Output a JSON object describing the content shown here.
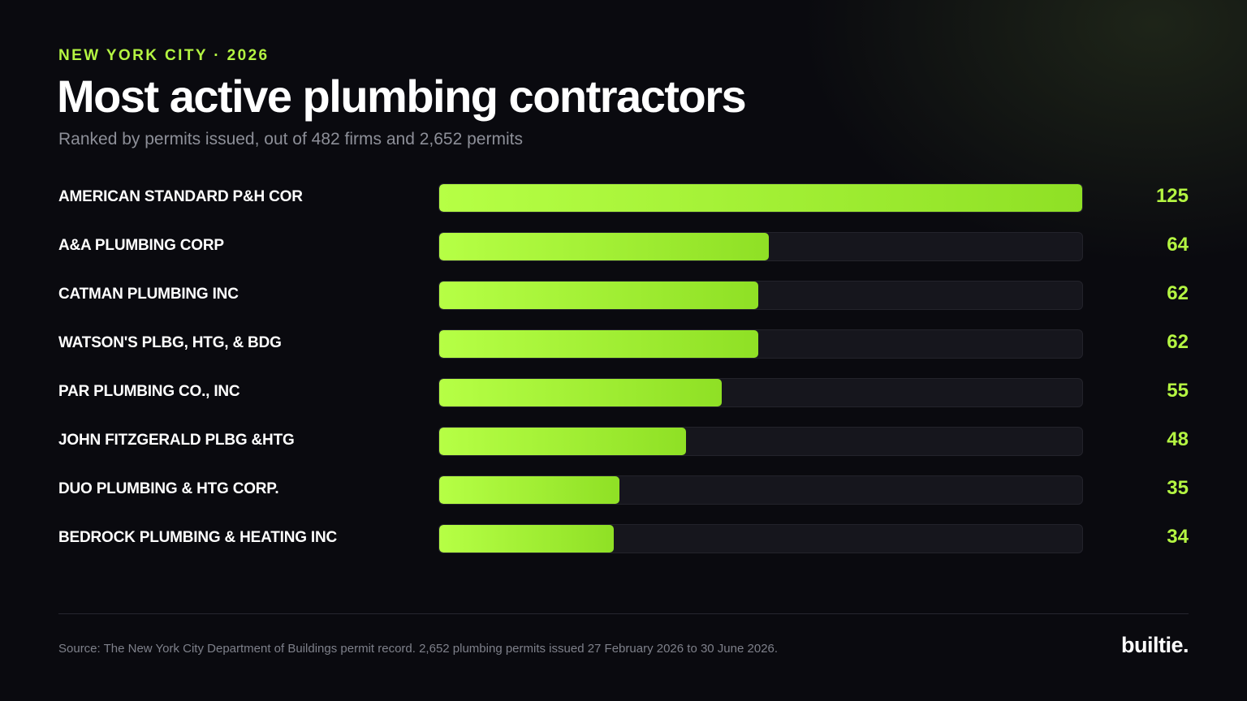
{
  "header": {
    "eyebrow": "NEW YORK CITY · 2026",
    "title": "Most active plumbing contractors",
    "subtitle": "Ranked by permits issued, out of 482 firms and 2,652 permits"
  },
  "colors": {
    "background": "#0a0a0f",
    "accent": "#b4f542",
    "bar_start": "#b6ff45",
    "bar_end": "#8fe025",
    "track": "#16161d",
    "text": "#ffffff",
    "muted": "#8d8f98"
  },
  "chart_data": {
    "type": "bar",
    "orientation": "horizontal",
    "categories": [
      "AMERICAN STANDARD P&H COR",
      "A&A PLUMBING CORP",
      "CATMAN PLUMBING INC",
      "WATSON'S PLBG, HTG, & BDG",
      "PAR PLUMBING CO., INC",
      "JOHN FITZGERALD PLBG &HTG",
      "DUO PLUMBING & HTG CORP.",
      "BEDROCK PLUMBING & HEATING INC"
    ],
    "values": [
      125,
      64,
      62,
      62,
      55,
      48,
      35,
      34
    ],
    "xlim": [
      0,
      125
    ],
    "grid": false
  },
  "footer": {
    "source": "Source: The New York City Department of Buildings permit record. 2,652 plumbing permits issued 27 February 2026 to 30 June 2026.",
    "brand": "builtie."
  }
}
